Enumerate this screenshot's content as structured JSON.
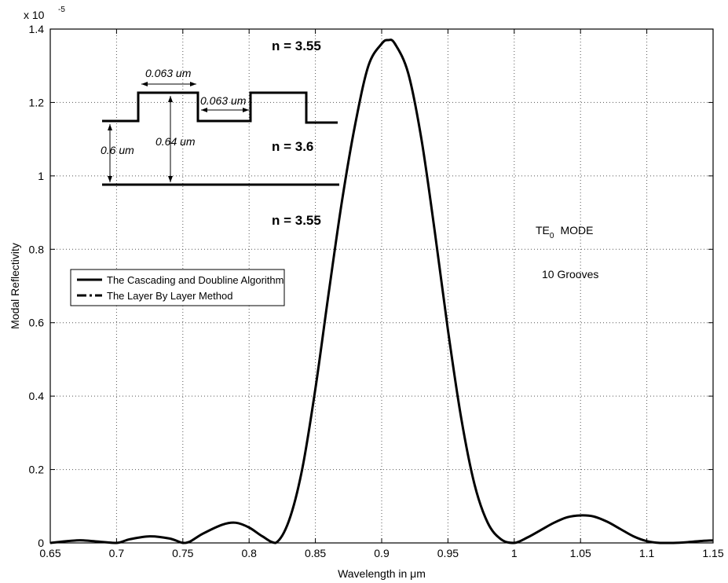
{
  "chart_data": {
    "type": "line",
    "xlabel": "Wavelength in μm",
    "ylabel": "Modal Reflectivity",
    "xlim": [
      0.65,
      1.15
    ],
    "ylim": [
      0,
      1.4
    ],
    "xticks": [
      "0.65",
      "0.7",
      "0.75",
      "0.8",
      "0.85",
      "0.9",
      "0.95",
      "1",
      "1.05",
      "1.1",
      "1.15"
    ],
    "yticks": [
      "0",
      "0.2",
      "0.4",
      "0.6",
      "0.8",
      "1",
      "1.2",
      "1.4"
    ],
    "y_scale_prefix": "x 10",
    "y_scale_exponent": "-5",
    "grid": true,
    "legend_position": "middle-left",
    "legend": [
      {
        "name": "The Cascading and Doubline Algorithm",
        "style": "solid"
      },
      {
        "name": "The Layer By Layer Method",
        "style": "dash-dot"
      }
    ],
    "series": [
      {
        "name": "The Cascading and Doubline Algorithm",
        "x": [
          0.65,
          0.66,
          0.67,
          0.675,
          0.685,
          0.7,
          0.71,
          0.725,
          0.74,
          0.75,
          0.755,
          0.765,
          0.78,
          0.79,
          0.8,
          0.81,
          0.82,
          0.83,
          0.84,
          0.85,
          0.86,
          0.87,
          0.88,
          0.89,
          0.9,
          0.905,
          0.91,
          0.92,
          0.93,
          0.94,
          0.95,
          0.96,
          0.97,
          0.98,
          0.99,
          1.0,
          1.01,
          1.02,
          1.03,
          1.04,
          1.05,
          1.06,
          1.07,
          1.08,
          1.09,
          1.1,
          1.11,
          1.12,
          1.13,
          1.14,
          1.15
        ],
        "values": [
          0.0,
          0.004,
          0.007,
          0.007,
          0.004,
          0.0,
          0.01,
          0.018,
          0.012,
          0.0,
          0.003,
          0.025,
          0.05,
          0.055,
          0.042,
          0.018,
          0.0,
          0.06,
          0.2,
          0.42,
          0.68,
          0.93,
          1.14,
          1.3,
          1.36,
          1.37,
          1.36,
          1.28,
          1.1,
          0.85,
          0.58,
          0.34,
          0.16,
          0.055,
          0.01,
          0.0,
          0.015,
          0.035,
          0.055,
          0.07,
          0.075,
          0.072,
          0.058,
          0.038,
          0.018,
          0.005,
          0.0,
          0.0,
          0.002,
          0.005,
          0.007
        ]
      }
    ],
    "annotations": {
      "n_top": "n = 3.55",
      "n_mid": "n = 3.6",
      "n_bottom": "n = 3.55",
      "dim_width1": "0.063 um",
      "dim_width2": "0.063 um",
      "dim_height1": "0.6 um",
      "dim_height2": "0.64 um",
      "mode_main": "TE",
      "mode_sub": "0",
      "mode_rest": "MODE",
      "grooves": "10 Grooves"
    }
  }
}
